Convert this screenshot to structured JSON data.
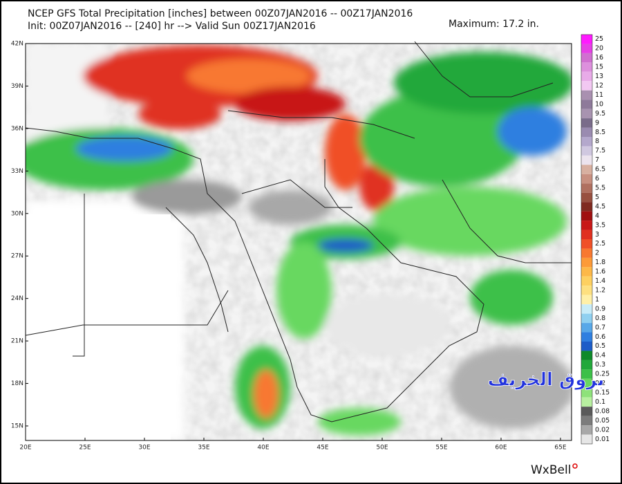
{
  "header": {
    "line1": "NCEP GFS Total Precipitation [inches] between 00Z07JAN2016 -- 00Z17JAN2016",
    "line2": "Init: 00Z07JAN2016 -- [240] hr --> Valid Sun 00Z17JAN2016",
    "maximum": "Maximum: 17.2 in."
  },
  "latitude_labels": [
    "42N",
    "39N",
    "36N",
    "33N",
    "30N",
    "27N",
    "24N",
    "21N",
    "18N",
    "15N"
  ],
  "longitude_labels": [
    "20E",
    "25E",
    "30E",
    "35E",
    "40E",
    "45E",
    "50E",
    "55E",
    "60E",
    "65E"
  ],
  "colorbar": [
    {
      "label": "25",
      "color": "#ff1aff"
    },
    {
      "label": "20",
      "color": "#e640e6"
    },
    {
      "label": "16",
      "color": "#d070d0"
    },
    {
      "label": "15",
      "color": "#dd90dd"
    },
    {
      "label": "13",
      "color": "#e8abe8"
    },
    {
      "label": "12",
      "color": "#f2c8f2"
    },
    {
      "label": "11",
      "color": "#a990b0"
    },
    {
      "label": "10",
      "color": "#8e7a9a"
    },
    {
      "label": "9.5",
      "color": "#a893b0"
    },
    {
      "label": "9",
      "color": "#7a6c8a"
    },
    {
      "label": "8.5",
      "color": "#9a8bb0"
    },
    {
      "label": "8",
      "color": "#b4a8cc"
    },
    {
      "label": "7.5",
      "color": "#d0c8e0"
    },
    {
      "label": "7",
      "color": "#ece4ee"
    },
    {
      "label": "6.5",
      "color": "#d8b0a0"
    },
    {
      "label": "6",
      "color": "#c89080"
    },
    {
      "label": "5.5",
      "color": "#b07060"
    },
    {
      "label": "5",
      "color": "#985040"
    },
    {
      "label": "4.5",
      "color": "#802a20"
    },
    {
      "label": "4",
      "color": "#a01010"
    },
    {
      "label": "3.5",
      "color": "#c81818"
    },
    {
      "label": "3",
      "color": "#e03020"
    },
    {
      "label": "2.5",
      "color": "#f05028"
    },
    {
      "label": "2",
      "color": "#f87830"
    },
    {
      "label": "1.8",
      "color": "#fc9a38"
    },
    {
      "label": "1.6",
      "color": "#fdb848"
    },
    {
      "label": "1.4",
      "color": "#fed060"
    },
    {
      "label": "1.2",
      "color": "#fee080"
    },
    {
      "label": "1",
      "color": "#fff0a8"
    },
    {
      "label": "0.9",
      "color": "#c8ecf8"
    },
    {
      "label": "0.8",
      "color": "#90d0f0"
    },
    {
      "label": "0.7",
      "color": "#58a8e8"
    },
    {
      "label": "0.6",
      "color": "#2f7fe0"
    },
    {
      "label": "0.5",
      "color": "#1c5cc8"
    },
    {
      "label": "0.4",
      "color": "#0e8a2a"
    },
    {
      "label": "0.3",
      "color": "#22a83a"
    },
    {
      "label": "0.25",
      "color": "#3cc048"
    },
    {
      "label": "0.2",
      "color": "#68d860"
    },
    {
      "label": "0.15",
      "color": "#8ee27a"
    },
    {
      "label": "0.1",
      "color": "#b8f0a0"
    },
    {
      "label": "0.08",
      "color": "#5a5a5a"
    },
    {
      "label": "0.05",
      "color": "#7c7c7c"
    },
    {
      "label": "0.02",
      "color": "#a8a8a8"
    },
    {
      "label": "0.01",
      "color": "#e6e6e6"
    }
  ],
  "watermark": "بروق الخريف",
  "logo": "WxBell"
}
